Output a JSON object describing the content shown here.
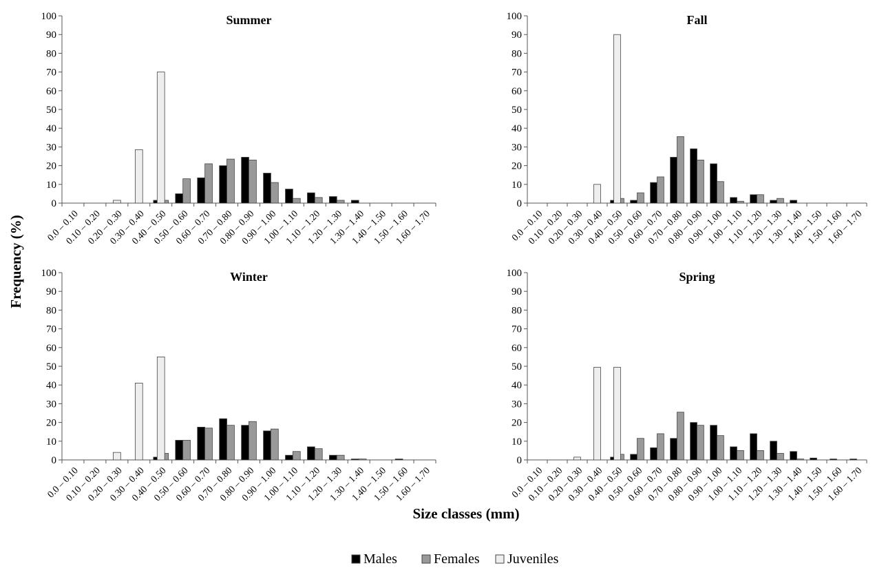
{
  "figure": {
    "ylabel": "Frequency (%)",
    "xlabel": "Size classes (mm)",
    "legend": [
      {
        "name": "Males",
        "color": "#000000"
      },
      {
        "name": "Females",
        "color": "#999999"
      },
      {
        "name": "Juveniles",
        "color": "#eeeeee"
      }
    ]
  },
  "chart_data": [
    {
      "type": "bar",
      "title": "Summer",
      "categories": [
        "0.0 – 0.10",
        "0.10 – 0.20",
        "0.20 – 0.30",
        "0.30 – 0.40",
        "0.40 – 0.50",
        "0.50 – 0.60",
        "0.60 – 0.70",
        "0.70 – 0.80",
        "0.80 – 0.90",
        "0.90 – 1.00",
        "1.00 – 1.10",
        "1.10 – 1.20",
        "1.20 – 1.30",
        "1.30 – 1.40",
        "1.40 – 1.50",
        "1.50 – 1.60",
        "1.60 – 1.70"
      ],
      "yticks": [
        0,
        10,
        20,
        30,
        40,
        50,
        60,
        70,
        80,
        90,
        100
      ],
      "ylim": [
        0,
        100
      ],
      "series": [
        {
          "name": "Males",
          "values": [
            0,
            0,
            0,
            0,
            1.5,
            5,
            13.5,
            20,
            24.5,
            16,
            7.5,
            5.5,
            3.5,
            1.5,
            0,
            0,
            0
          ]
        },
        {
          "name": "Females",
          "values": [
            0,
            0,
            0,
            0,
            1.5,
            13,
            21,
            23.5,
            23,
            11,
            2.5,
            3,
            1.5,
            0,
            0,
            0,
            0
          ]
        },
        {
          "name": "Juveniles",
          "values": [
            0,
            0,
            1.5,
            28.5,
            70,
            0,
            0,
            0,
            0,
            0,
            0,
            0,
            0,
            0,
            0,
            0,
            0
          ]
        }
      ]
    },
    {
      "type": "bar",
      "title": "Fall",
      "categories": [
        "0.0 – 0.10",
        "0.10 – 0.20",
        "0.20 – 0.30",
        "0.30 – 0.40",
        "0.40 – 0.50",
        "0.50 – 0.60",
        "0.60 – 0.70",
        "0.70 – 0.80",
        "0.80 – 0.90",
        "0.90 – 1.00",
        "1.00 – 1.10",
        "1.10 – 1.20",
        "1.20 – 1.30",
        "1.30 – 1.40",
        "1.40 – 1.50",
        "1.50 – 1.60",
        "1.60 – 1.70"
      ],
      "yticks": [
        0,
        10,
        20,
        30,
        40,
        50,
        60,
        70,
        80,
        90,
        100
      ],
      "ylim": [
        0,
        100
      ],
      "series": [
        {
          "name": "Males",
          "values": [
            0,
            0,
            0,
            0,
            1.5,
            1.5,
            11,
            24.5,
            29,
            21,
            3,
            4.5,
            1.5,
            1.5,
            0,
            0,
            0
          ]
        },
        {
          "name": "Females",
          "values": [
            0,
            0,
            0,
            0,
            2.5,
            5.5,
            14,
            35.5,
            23,
            11.5,
            1,
            4.5,
            2.5,
            0,
            0,
            0,
            0
          ]
        },
        {
          "name": "Juveniles",
          "values": [
            0,
            0,
            0,
            10,
            90,
            0,
            0,
            0,
            0,
            0,
            0,
            0,
            0,
            0,
            0,
            0,
            0
          ]
        }
      ]
    },
    {
      "type": "bar",
      "title": "Winter",
      "categories": [
        "0.0 – 0.10",
        "0.10 – 0.20",
        "0.20 – 0.30",
        "0.30 – 0.40",
        "0.40 – 0.50",
        "0.50 – 0.60",
        "0.60 – 0.70",
        "0.70 – 0.80",
        "0.80 – 0.90",
        "0.90 – 1.00",
        "1.00 – 1.10",
        "1.10 – 1.20",
        "1.20 – 1.30",
        "1.30 – 1.40",
        "1.40 – 1.50",
        "1.50 – 1.60",
        "1.60 – 1.70"
      ],
      "yticks": [
        0,
        10,
        20,
        30,
        40,
        50,
        60,
        70,
        80,
        90,
        100
      ],
      "ylim": [
        0,
        100
      ],
      "series": [
        {
          "name": "Males",
          "values": [
            0,
            0,
            0,
            0,
            1.5,
            10.5,
            17.5,
            22,
            18.5,
            15.5,
            2.5,
            7,
            2.5,
            0.5,
            0,
            0.5,
            0
          ]
        },
        {
          "name": "Females",
          "values": [
            0,
            0,
            0,
            0,
            3.5,
            10.5,
            17,
            18.5,
            20.5,
            16.5,
            4.5,
            6,
            2.5,
            0.5,
            0,
            0,
            0
          ]
        },
        {
          "name": "Juveniles",
          "values": [
            0,
            0,
            4,
            41,
            55,
            0,
            0,
            0,
            0,
            0,
            0,
            0,
            0,
            0,
            0,
            0,
            0
          ]
        }
      ]
    },
    {
      "type": "bar",
      "title": "Spring",
      "categories": [
        "0.0 – 0.10",
        "0.10 – 0.20",
        "0.20 – 0.30",
        "0.30 – 0.40",
        "0.40 – 0.50",
        "0.50 – 0.60",
        "0.60 – 0.70",
        "0.70 – 0.80",
        "0.80 – 0.90",
        "0.90 – 1.00",
        "1.00 – 1.10",
        "1.10 – 1.20",
        "1.20 – 1.30",
        "1.30 – 1.40",
        "1.40 – 1.50",
        "1.50 – 1.60",
        "1.60 – 1.70"
      ],
      "yticks": [
        0,
        10,
        20,
        30,
        40,
        50,
        60,
        70,
        80,
        90,
        100
      ],
      "ylim": [
        0,
        100
      ],
      "series": [
        {
          "name": "Males",
          "values": [
            0,
            0,
            0,
            0,
            1.5,
            3,
            6.5,
            11.5,
            20,
            18.5,
            7,
            14,
            10,
            4.5,
            1,
            0.5,
            0.5
          ]
        },
        {
          "name": "Females",
          "values": [
            0,
            0,
            0,
            0,
            3,
            11.5,
            14,
            25.5,
            18.5,
            13,
            5,
            5,
            3.5,
            0.5,
            0,
            0,
            0
          ]
        },
        {
          "name": "Juveniles",
          "values": [
            0,
            0,
            1.5,
            49.5,
            49.5,
            0,
            0,
            0,
            0,
            0,
            0,
            0,
            0,
            0,
            0,
            0,
            0
          ]
        }
      ]
    }
  ]
}
